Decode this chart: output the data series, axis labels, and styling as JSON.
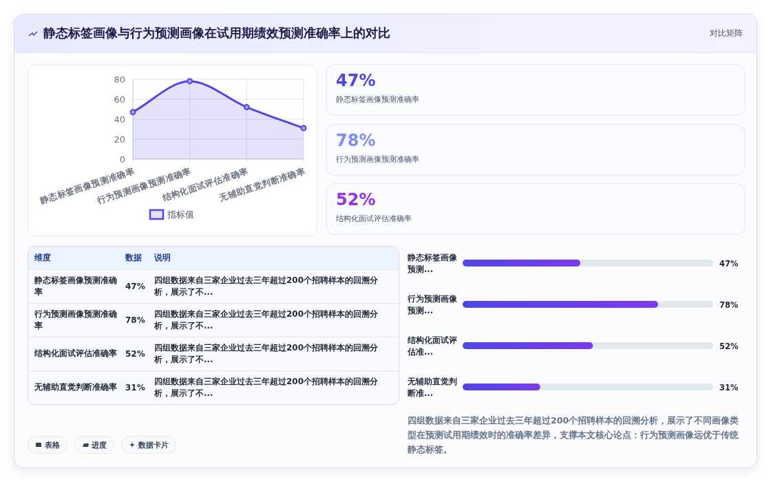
{
  "chart_data": [
    {
      "type": "area",
      "title": "静态标签画像与行为预测画像在试用期绩效预测准确率上的对比",
      "categories": [
        "静态标签画像预测准确率",
        "行为预测画像预测准确率",
        "结构化面试评估准确率",
        "无辅助直觉判断准确率"
      ],
      "series": [
        {
          "name": "指标值",
          "color": "#4f46e5",
          "values": [
            47,
            78,
            52,
            31
          ]
        }
      ],
      "ylim": [
        0,
        80
      ],
      "yticks": [
        0,
        20,
        40,
        60,
        80
      ],
      "grid": true,
      "legend": "bottom",
      "marker": "circle"
    },
    {
      "type": "other",
      "subtitle": "对比矩阵",
      "categories": [
        "静态标签画像预测准确率",
        "行为预测画像预测准确率",
        "结构化面试评估准确率"
      ],
      "value_labels": [
        "47%",
        "78%",
        "52%"
      ],
      "colors": [
        "#4f46e5",
        "#818cf8",
        "#9333ea"
      ]
    },
    {
      "type": "other",
      "categories": [
        "静态标签画像预测准确率",
        "行为预测画像预测准确率",
        "结构化面试评估准确率",
        "无辅助直觉判断准确率"
      ],
      "value_labels": [
        "47%",
        "78%",
        "52%",
        "31%"
      ],
      "annotations": [
        "维度",
        "数据",
        "说明",
        "四组数据来自三家企业过去三年超过200个招聘样本的回溯分析，展示了不...",
        "四组数据来自三家企业过去三年超过200个招聘样本的回溯分析，展示了不...",
        "四组数据来自三家企业过去三年超过200个招聘样本的回溯分析，展示了不...",
        "四组数据来自三家企业过去三年超过200个招聘样本的回溯分析，展示了不...",
        "表格",
        "进度",
        "数据卡片"
      ]
    },
    {
      "type": "bar",
      "orientation": "horizontal",
      "categories": [
        "静态标签画像预测...",
        "行为预测画像预测...",
        "结构化面试评估准...",
        "无辅助直觉判断准..."
      ],
      "values": [
        47,
        78,
        52,
        31
      ],
      "value_labels": [
        "47%",
        "78%",
        "52%",
        "31%"
      ],
      "xlim": [
        0,
        100
      ],
      "color": "#7c3aed",
      "annotations": [
        "四组数据来自三家企业过去三年超过200个招聘样本的回溯分析，展示了不同画像类型在预测试用期绩效时的准确率差异，支撑本文核心论点：行为预测画像远优于传统静态标签。"
      ]
    }
  ]
}
